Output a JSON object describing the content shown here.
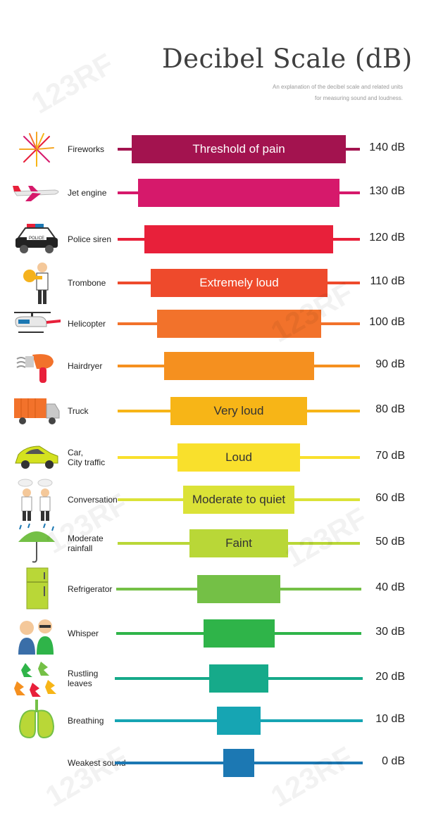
{
  "title": "Decibel Scale (dB)",
  "subtitle_line1": "An explanation of the decibel scale and related units",
  "subtitle_line2": "for measuring sound and loudness.",
  "watermark": "123RF",
  "rows": [
    {
      "label": "Fireworks",
      "band": "Threshold of pain",
      "value": "140 dB",
      "color": "#a3134f",
      "icon": "fireworks-icon"
    },
    {
      "label": "Jet engine",
      "band": "",
      "value": "130 dB",
      "color": "#d6196b",
      "icon": "jet-engine-icon"
    },
    {
      "label": "Police siren",
      "band": "",
      "value": "120 dB",
      "color": "#e8203a",
      "icon": "police-car-icon"
    },
    {
      "label": "Trombone",
      "band": "Extremely loud",
      "value": "110 dB",
      "color": "#ee4a2c",
      "icon": "trombone-player-icon"
    },
    {
      "label": "Helicopter",
      "band": "",
      "value": "100 dB",
      "color": "#f2722b",
      "icon": "helicopter-icon"
    },
    {
      "label": "Hairdryer",
      "band": "",
      "value": "90 dB",
      "color": "#f5901f",
      "icon": "hairdryer-icon"
    },
    {
      "label": "Truck",
      "band": "Very loud",
      "value": "80 dB",
      "color": "#f7b517",
      "icon": "truck-icon"
    },
    {
      "label": "Car,\nCity traffic",
      "band": "Loud",
      "value": "70 dB",
      "color": "#f9e02c",
      "icon": "car-icon"
    },
    {
      "label": "Conversation",
      "band": "Moderate to quiet",
      "value": "60 dB",
      "color": "#dbe237",
      "icon": "conversation-icon"
    },
    {
      "label": "Moderate\nrainfall",
      "band": "Faint",
      "value": "50 dB",
      "color": "#b9d737",
      "icon": "umbrella-rain-icon"
    },
    {
      "label": "Refrigerator",
      "band": "",
      "value": "40 dB",
      "color": "#74c046",
      "icon": "refrigerator-icon"
    },
    {
      "label": "Whisper",
      "band": "",
      "value": "30 dB",
      "color": "#2fb449",
      "icon": "whisper-icon"
    },
    {
      "label": "Rustling\nleaves",
      "band": "",
      "value": "20 dB",
      "color": "#16aa8a",
      "icon": "leaves-icon"
    },
    {
      "label": "Breathing",
      "band": "",
      "value": "10 dB",
      "color": "#16a5b3",
      "icon": "lungs-icon"
    },
    {
      "label": "Weakest sound",
      "band": "",
      "value": "0 dB",
      "color": "#1c78b3",
      "icon": ""
    }
  ]
}
